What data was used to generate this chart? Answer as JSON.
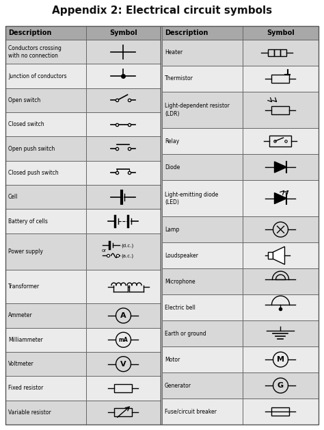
{
  "title": "Appendix 2: Electrical circuit symbols",
  "bg_color": "#ebebeb",
  "header_bg": "#a8a8a8",
  "row_bg_alt": "#d8d8d8",
  "row_bg": "#ebebeb",
  "border_color": "#666666",
  "left_rows": [
    "Conductors crossing\nwith no connection",
    "Junction of conductors",
    "Open switch",
    "Closed switch",
    "Open push switch",
    "Closed push switch",
    "Cell",
    "Battery of cells",
    "Power supply",
    "Transformer",
    "Ammeter",
    "Milliammeter",
    "Voltmeter",
    "Fixed resistor",
    "Variable resistor"
  ],
  "right_rows": [
    "Heater",
    "Thermistor",
    "Light-dependent resistor\n(LDR)",
    "Relay",
    "Diode",
    "Light-emitting diode\n(LED)",
    "Lamp",
    "Loudspeaker",
    "Microphone",
    "Electric bell",
    "Earth or ground",
    "Motor",
    "Generator",
    "Fuse/circuit breaker"
  ],
  "figw": 4.74,
  "figh": 6.28,
  "dpi": 100
}
